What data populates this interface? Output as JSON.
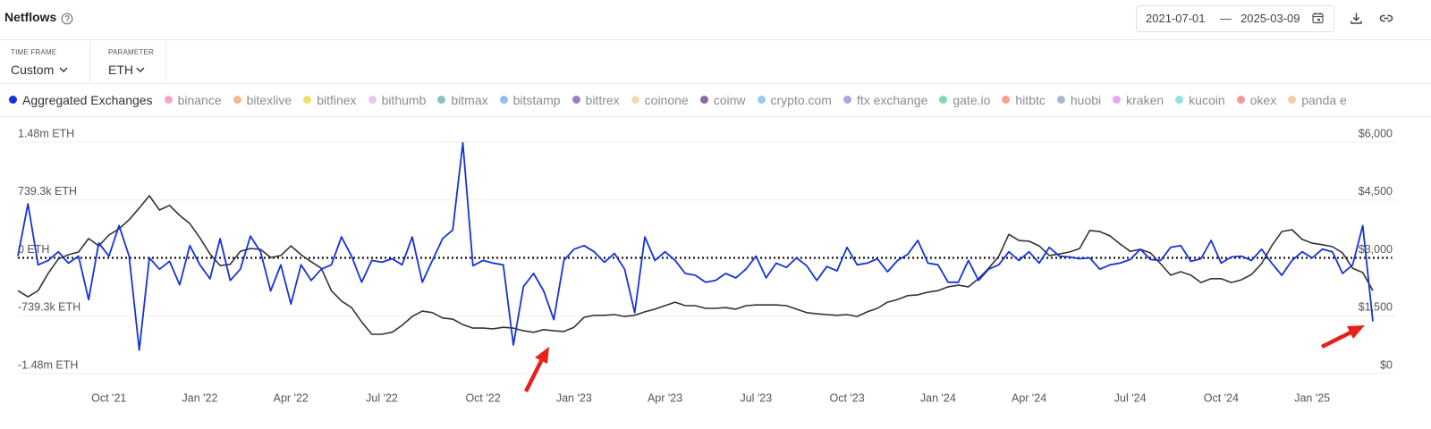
{
  "header": {
    "title": "Netflows",
    "date_range": {
      "start": "2021-07-01",
      "separator": "—",
      "end": "2025-03-09"
    }
  },
  "filters": [
    {
      "label": "TIME FRAME",
      "value": "Custom"
    },
    {
      "label": "PARAMETER",
      "value": "ETH"
    }
  ],
  "chart_data": {
    "type": "line",
    "categories": [
      null,
      null,
      null,
      null,
      null,
      null,
      null,
      null,
      null,
      "Oct '21",
      null,
      null,
      null,
      null,
      null,
      null,
      null,
      null,
      "Jan '22",
      null,
      null,
      null,
      null,
      null,
      null,
      null,
      null,
      "Apr '22",
      null,
      null,
      null,
      null,
      null,
      null,
      null,
      null,
      "Jul '22",
      null,
      null,
      null,
      null,
      null,
      null,
      null,
      null,
      null,
      "Oct '22",
      null,
      null,
      null,
      null,
      null,
      null,
      null,
      null,
      "Jan '23",
      null,
      null,
      null,
      null,
      null,
      null,
      null,
      null,
      "Apr '23",
      null,
      null,
      null,
      null,
      null,
      null,
      null,
      null,
      "Jul '23",
      null,
      null,
      null,
      null,
      null,
      null,
      null,
      null,
      "Oct '23",
      null,
      null,
      null,
      null,
      null,
      null,
      null,
      null,
      "Jan '24",
      null,
      null,
      null,
      null,
      null,
      null,
      null,
      null,
      "Apr '24",
      null,
      null,
      null,
      null,
      null,
      null,
      null,
      null,
      null,
      "Jul '24",
      null,
      null,
      null,
      null,
      null,
      null,
      null,
      null,
      "Oct '24",
      null,
      null,
      null,
      null,
      null,
      null,
      null,
      null,
      "Jan '25",
      null,
      null,
      null,
      null,
      null,
      null
    ],
    "series": [
      {
        "name": "Aggregated Exchanges",
        "color": "#1533d6",
        "values": [
          22000,
          690000,
          -89000,
          -33000,
          78000,
          -67000,
          22000,
          -534000,
          189000,
          22000,
          412000,
          22000,
          -1180000,
          0,
          -145000,
          -45000,
          -345000,
          156000,
          -89000,
          -267000,
          245000,
          -289000,
          -145000,
          278000,
          78000,
          -423000,
          -89000,
          -590000,
          -89000,
          -289000,
          -145000,
          -89000,
          267000,
          22000,
          -312000,
          -33000,
          -56000,
          -11000,
          -89000,
          267000,
          -312000,
          -33000,
          245000,
          356000,
          1469000,
          -100000,
          -33000,
          -67000,
          -89000,
          -1113000,
          -367000,
          -200000,
          -423000,
          -790000,
          -33000,
          111000,
          156000,
          78000,
          -56000,
          56000,
          -145000,
          -701000,
          267000,
          -33000,
          78000,
          -33000,
          -200000,
          -223000,
          -312000,
          -289000,
          -200000,
          -256000,
          -145000,
          22000,
          -256000,
          -67000,
          -122000,
          0,
          -100000,
          -289000,
          -111000,
          -167000,
          134000,
          -89000,
          -67000,
          -11000,
          -178000,
          -33000,
          45000,
          223000,
          -67000,
          -89000,
          -312000,
          -312000,
          -33000,
          -289000,
          -145000,
          -89000,
          78000,
          -33000,
          78000,
          -67000,
          134000,
          22000,
          11000,
          -11000,
          0,
          -145000,
          -89000,
          -67000,
          -22000,
          111000,
          -22000,
          -33000,
          134000,
          156000,
          -45000,
          -11000,
          223000,
          -67000,
          11000,
          22000,
          -33000,
          111000,
          -67000,
          -223000,
          -33000,
          78000,
          0,
          111000,
          78000,
          -200000,
          -89000,
          412000,
          -812000
        ]
      },
      {
        "color": "#333333",
        "axis": "y2",
        "values": [
          2150,
          1990,
          2150,
          2600,
          2970,
          3080,
          3150,
          3500,
          3310,
          3590,
          3750,
          3990,
          4290,
          4610,
          4240,
          4360,
          4100,
          3890,
          3520,
          3100,
          2800,
          2830,
          3170,
          3240,
          3220,
          3010,
          3060,
          3310,
          3080,
          2900,
          2730,
          2150,
          1880,
          1710,
          1340,
          1020,
          1020,
          1070,
          1250,
          1480,
          1620,
          1580,
          1440,
          1410,
          1270,
          1180,
          1180,
          1160,
          1200,
          1180,
          1110,
          1070,
          1140,
          1110,
          1090,
          1200,
          1460,
          1510,
          1510,
          1530,
          1480,
          1510,
          1600,
          1670,
          1760,
          1850,
          1760,
          1760,
          1690,
          1690,
          1710,
          1670,
          1760,
          1780,
          1780,
          1780,
          1760,
          1670,
          1580,
          1550,
          1530,
          1510,
          1530,
          1480,
          1600,
          1690,
          1850,
          1920,
          2020,
          2040,
          2110,
          2150,
          2250,
          2290,
          2250,
          2460,
          2730,
          3040,
          3610,
          3450,
          3430,
          3310,
          3060,
          3100,
          3150,
          3240,
          3710,
          3680,
          3570,
          3360,
          3170,
          3220,
          3130,
          2850,
          2550,
          2640,
          2550,
          2360,
          2460,
          2460,
          2360,
          2430,
          2570,
          2850,
          3310,
          3680,
          3730,
          3480,
          3380,
          3340,
          3290,
          3130,
          2730,
          2620,
          2150
        ]
      }
    ],
    "inactive_legend": [
      {
        "name": "binance",
        "color": "#f4a6c8"
      },
      {
        "name": "bitexlive",
        "color": "#f5b88a"
      },
      {
        "name": "bitfinex",
        "color": "#f2e06b"
      },
      {
        "name": "bithumb",
        "color": "#e7c6f5"
      },
      {
        "name": "bitmax",
        "color": "#88c2c2"
      },
      {
        "name": "bitstamp",
        "color": "#8fbfee"
      },
      {
        "name": "bittrex",
        "color": "#9d7fbf"
      },
      {
        "name": "coinone",
        "color": "#f5d7b5"
      },
      {
        "name": "coinw",
        "color": "#8a6d9a"
      },
      {
        "name": "crypto.com",
        "color": "#92cdee"
      },
      {
        "name": "ftx exchange",
        "color": "#a9a6e8"
      },
      {
        "name": "gate.io",
        "color": "#7fdba8"
      },
      {
        "name": "hitbtc",
        "color": "#f4a28f"
      },
      {
        "name": "huobi",
        "color": "#aab8cc"
      },
      {
        "name": "kraken",
        "color": "#e9a7ee"
      },
      {
        "name": "kucoin",
        "color": "#8ee6d8"
      },
      {
        "name": "okex",
        "color": "#f29a9a"
      },
      {
        "name": "panda e",
        "color": "#f5cfa0"
      }
    ],
    "ylim": [
      -1478600,
      1478600
    ],
    "yticks": [
      {
        "value": 1478600,
        "label": "1.48m ETH"
      },
      {
        "value": 739300,
        "label": "739.3k ETH"
      },
      {
        "value": 0,
        "label": "0 ETH"
      },
      {
        "value": -739300,
        "label": "-739.3k ETH"
      },
      {
        "value": -1478600,
        "label": "-1.48m ETH"
      }
    ],
    "y2lim": [
      0,
      6000
    ],
    "y2ticks": [
      {
        "value": 6000,
        "label": "$6,000"
      },
      {
        "value": 4500,
        "label": "$4,500"
      },
      {
        "value": 3000,
        "label": "$3,000"
      },
      {
        "value": 1500,
        "label": "$1,500"
      },
      {
        "value": 0,
        "label": "$0"
      }
    ],
    "grid": true
  }
}
